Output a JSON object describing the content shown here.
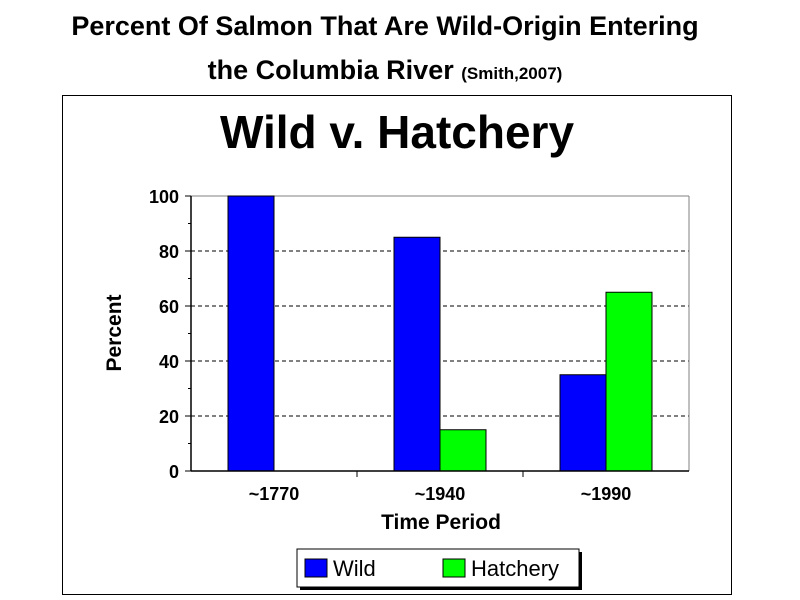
{
  "slide": {
    "title_line1": "Percent Of Salmon That Are Wild-Origin Entering",
    "title_line2": "the Columbia River",
    "citation": "(Smith,2007)"
  },
  "chart_data": {
    "type": "bar",
    "title": "Wild v. Hatchery",
    "xlabel": "Time Period",
    "ylabel": "Percent",
    "categories": [
      "~1770",
      "~1940",
      "~1990"
    ],
    "series": [
      {
        "name": "Wild",
        "values": [
          100,
          85,
          35
        ],
        "color": "#0000FF"
      },
      {
        "name": "Hatchery",
        "values": [
          0,
          15,
          65
        ],
        "color": "#00FF00"
      }
    ],
    "ylim": [
      0,
      100
    ],
    "yticks": [
      0,
      20,
      40,
      60,
      80,
      100
    ],
    "grid": "horizontal dashed",
    "legend_position": "bottom"
  }
}
